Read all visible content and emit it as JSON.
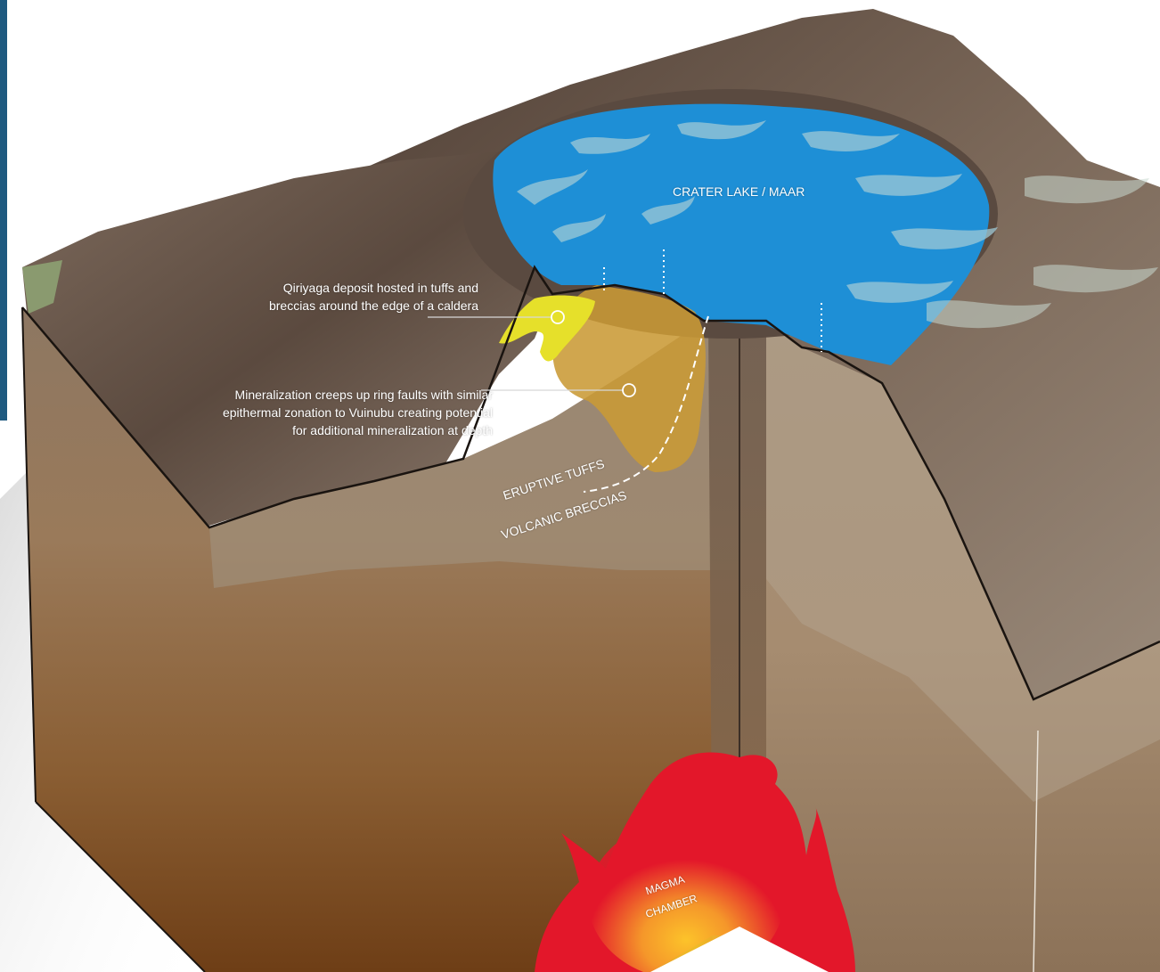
{
  "labels": {
    "crater_lake": "CRATER LAKE / MAAR",
    "qiriyaga_line1": "Qiriyaga deposit hosted in tuffs and",
    "qiriyaga_line2": "breccias around the edge of a caldera",
    "mineral_line1": "Mineralization creeps up ring faults with similar",
    "mineral_line2": "epithermal zonation to Vuinubu creating potential",
    "mineral_line3": "for additional mineralization at depth",
    "eruptive_tuffs": "ERUPTIVE TUFFS",
    "volcanic_breccias": "VOLCANIC BRECCIAS",
    "magma_line1": "MAGMA",
    "magma_line2": "CHAMBER"
  },
  "colors": {
    "lake": "#1e8fd6",
    "deposit_yellow": "#e6e02a",
    "mineralization_ochre": "#c99a35",
    "magma_red": "#e3172a",
    "magma_glow": "#f7b52a",
    "rock_brown": "#6e5a4a",
    "sidebar_blue": "#1f5a80"
  }
}
